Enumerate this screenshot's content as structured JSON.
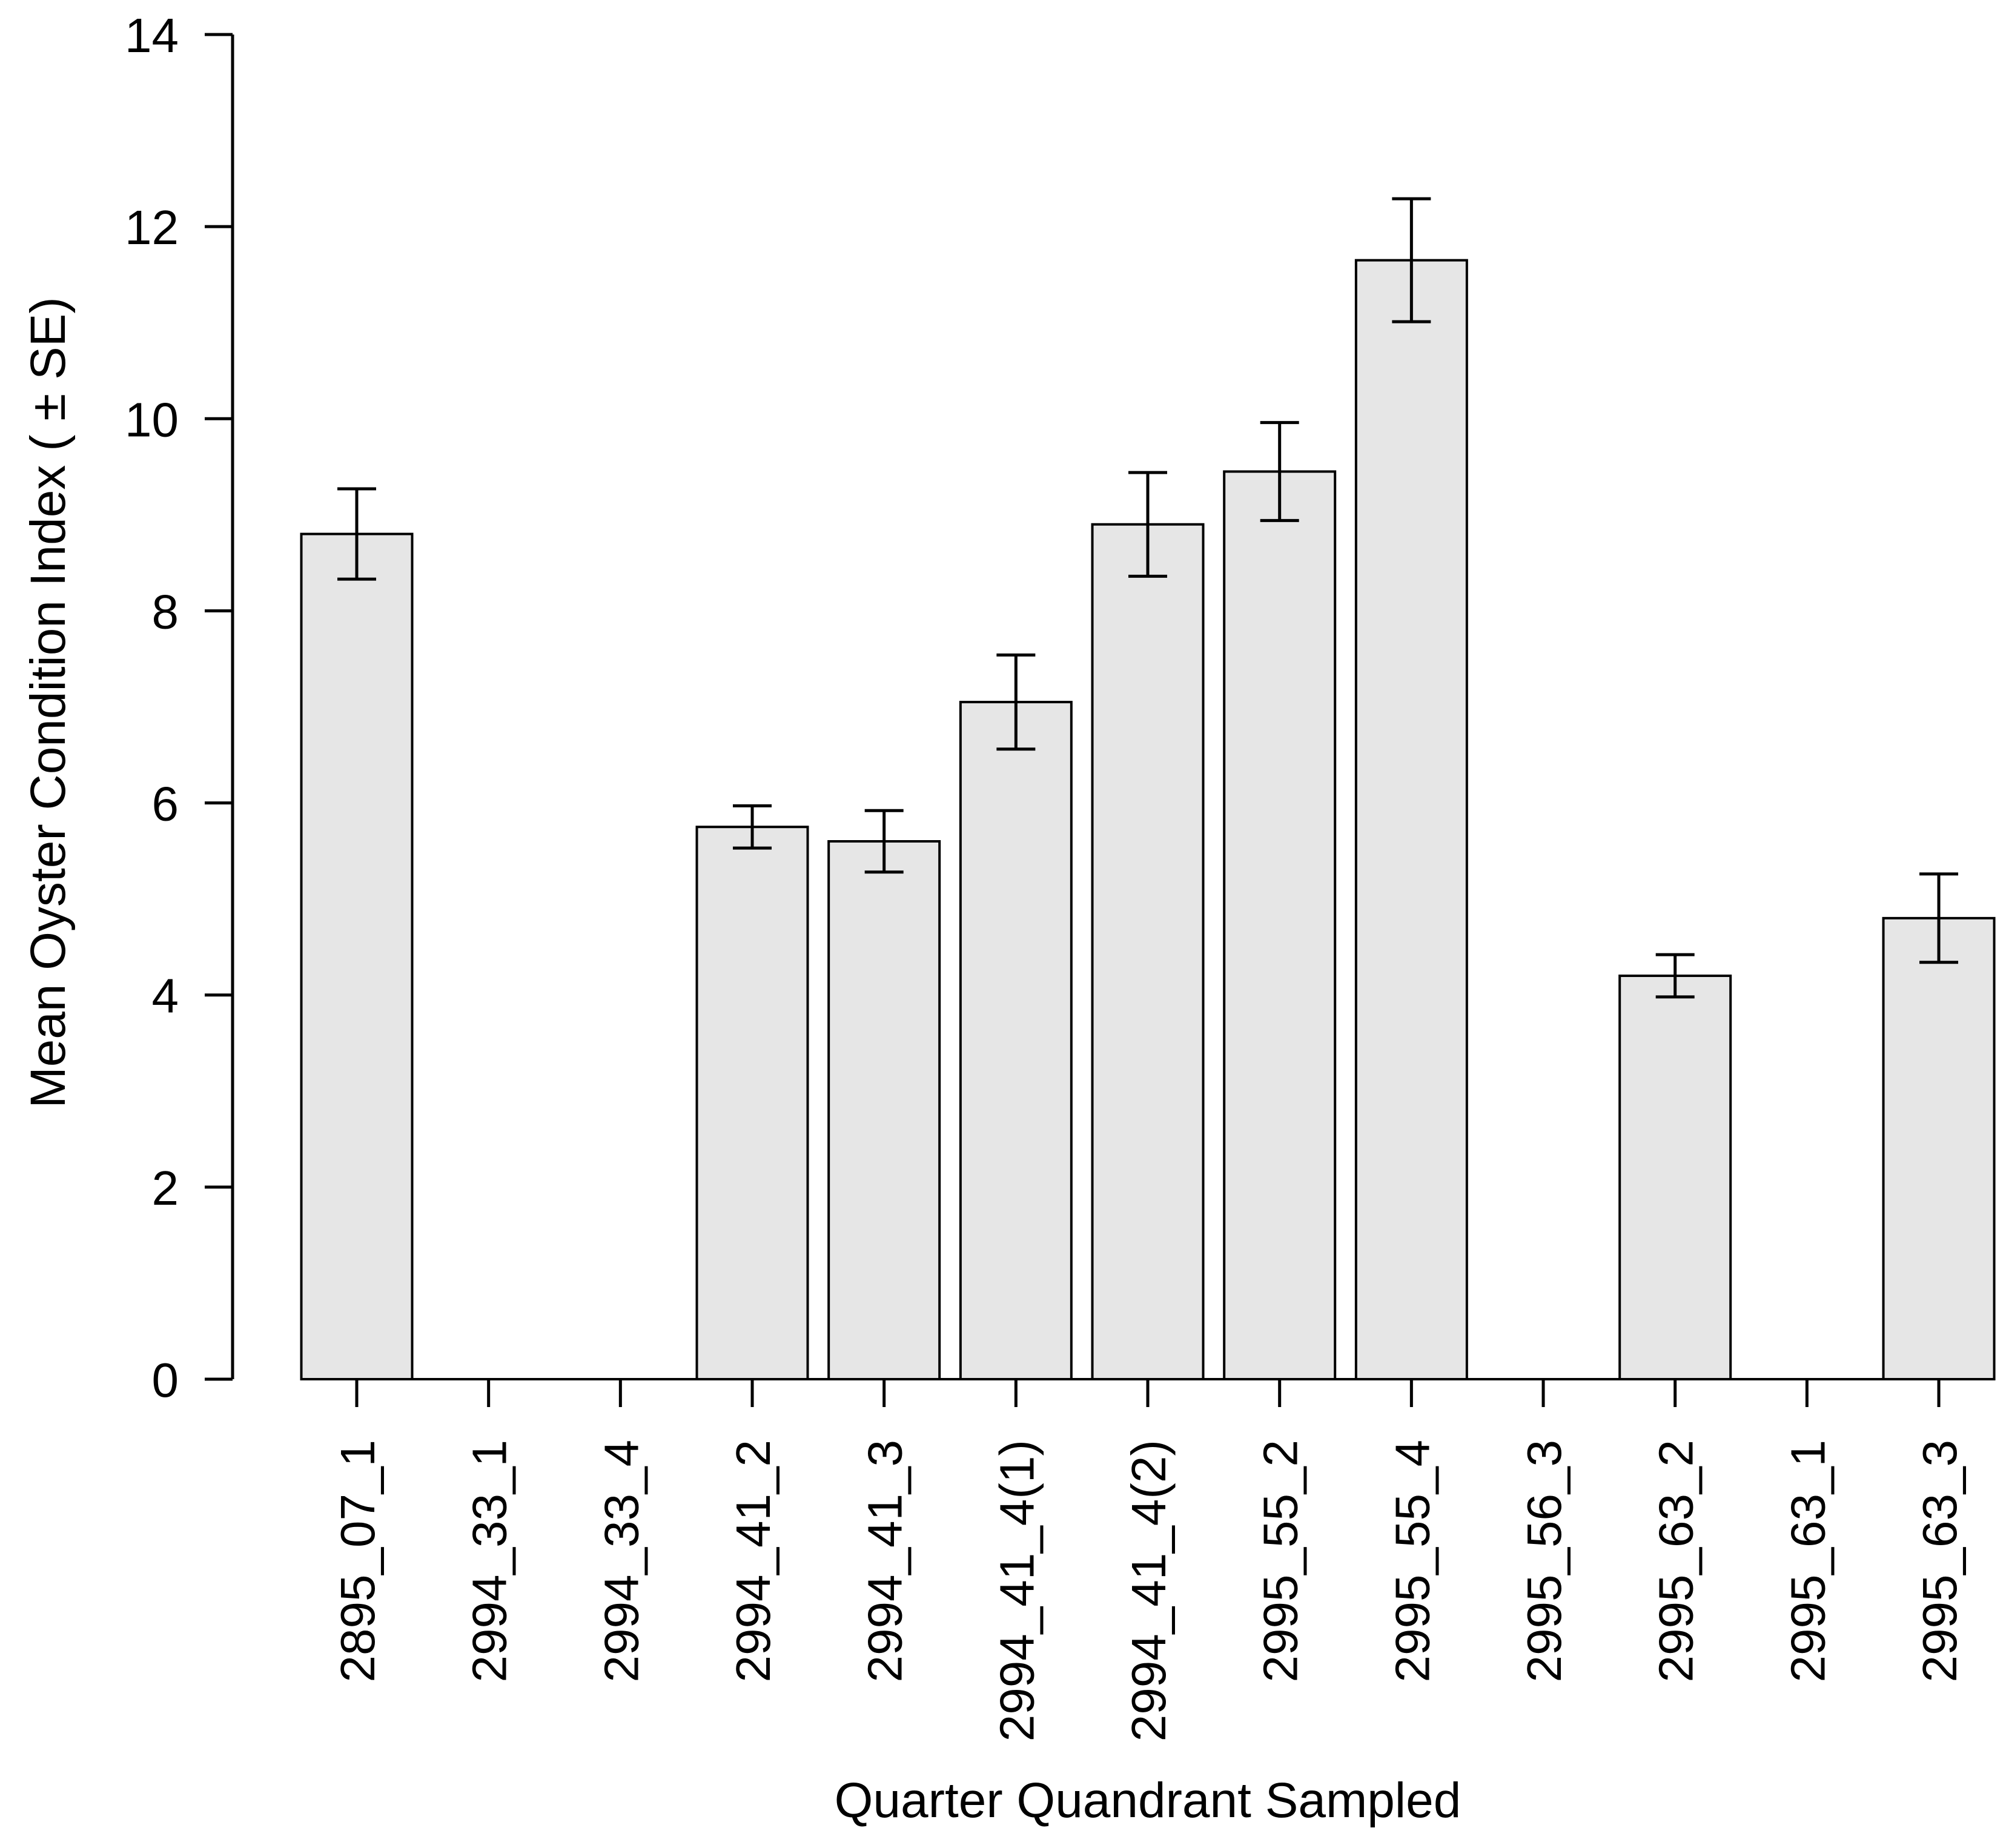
{
  "figure": {
    "background_color": "#ffffff",
    "text_color": "#000000"
  },
  "chart_data": {
    "type": "bar",
    "title": "",
    "xlabel": "Quarter Quandrant Sampled",
    "ylabel": "Mean Oyster Condition Index ( ± SE)",
    "categories": [
      "2895_07_1",
      "2994_33_1",
      "2994_33_4",
      "2994_41_2",
      "2994_41_3",
      "2994_41_4(1)",
      "2994_41_4(2)",
      "2995_55_2",
      "2995_55_4",
      "2995_56_3",
      "2995_63_2",
      "2995_63_1",
      "2995_63_3"
    ],
    "values": [
      8.8,
      0,
      0,
      5.75,
      5.6,
      7.05,
      8.9,
      9.45,
      11.65,
      0,
      4.2,
      0,
      4.8
    ],
    "standard_errors": [
      0.47,
      0,
      0,
      0.22,
      0.32,
      0.49,
      0.54,
      0.51,
      0.64,
      0,
      0.22,
      0,
      0.46
    ],
    "error_bars": true,
    "ylim": [
      0,
      14
    ],
    "yticks": [
      0,
      2,
      4,
      6,
      8,
      10,
      12,
      14
    ],
    "grid": false,
    "legend": false,
    "bar_fill_color": "#e6e6e6",
    "bar_stroke_color": "#000000",
    "error_bar_color": "#000000",
    "axis_color": "#000000"
  }
}
